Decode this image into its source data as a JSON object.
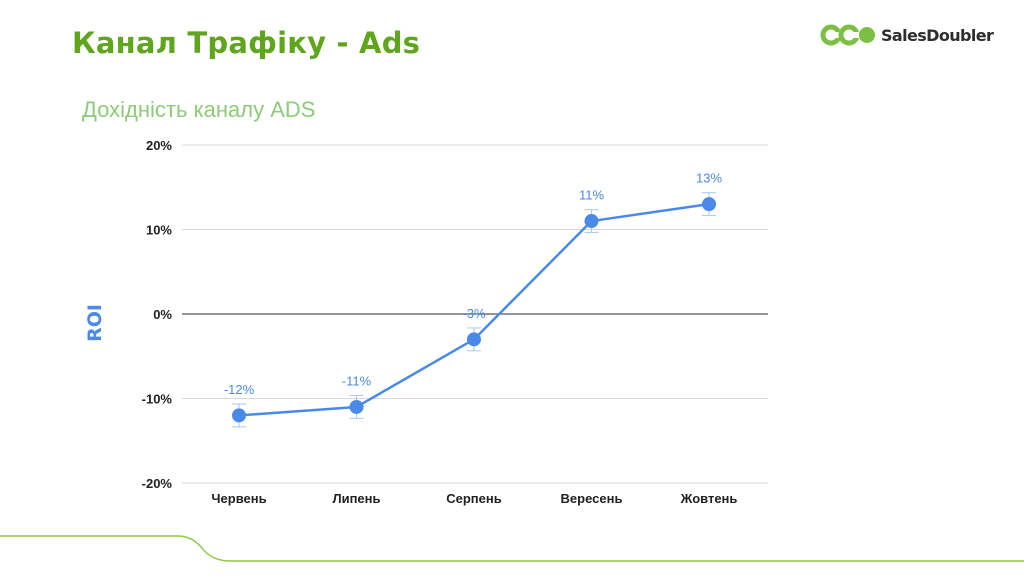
{
  "slide": {
    "title": "Канал Трафіку - Ads"
  },
  "logo": {
    "text": "SalesDoubler",
    "mark_icon": "salesdoubler-logo-icon"
  },
  "colors": {
    "title_green": "#5fa51e",
    "subtitle_green": "#8ccc78",
    "series_blue": "#4a89ea",
    "grid": "#d9d9d9",
    "zero_line": "#555555",
    "footer_line": "#8dc63f"
  },
  "chart_data": {
    "type": "line",
    "title": "Дохідність каналу ADS",
    "ylabel": "ROI",
    "xlabel": "",
    "categories": [
      "Червень",
      "Липень",
      "Серпень",
      "Вересень",
      "Жовтень"
    ],
    "values": [
      -12,
      -11,
      -3,
      11,
      13
    ],
    "data_labels": [
      "-12%",
      "-11%",
      "-3%",
      "11%",
      "13%"
    ],
    "error_bars": true,
    "ylim": [
      -20,
      20
    ],
    "yticks": [
      20,
      10,
      0,
      -10,
      -20
    ],
    "ytick_labels": [
      "20%",
      "10%",
      "0%",
      "-10%",
      "-20%"
    ],
    "grid": true,
    "legend": "none"
  }
}
